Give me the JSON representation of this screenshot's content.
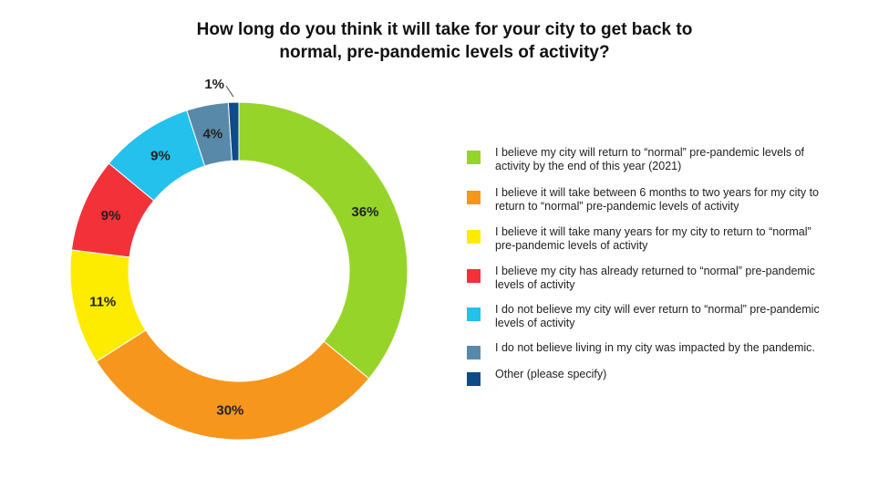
{
  "chart_data": {
    "type": "pie",
    "variant": "donut",
    "title_lines": [
      "How long do you think it will take for your city to get back to",
      "normal, pre-pandemic levels of activity?"
    ],
    "legend_placement": "right",
    "slices": [
      {
        "label": "I believe my city will return to “normal” pre-pandemic levels of activity by the end of this year (2021)",
        "value": 36,
        "data_label": "36%",
        "color": "#97D42A"
      },
      {
        "label": "I believe it will take between 6 months to two years for my city to return to “normal” pre-pandemic levels of activity",
        "value": 30,
        "data_label": "30%",
        "color": "#F7961D"
      },
      {
        "label": "I believe it will take many years for my city to return to “normal” pre-pandemic levels of activity",
        "value": 11,
        "data_label": "11%",
        "color": "#FDEC00"
      },
      {
        "label": "I believe my city has already returned to “normal” pre-pandemic levels of activity",
        "value": 9,
        "data_label": "9%",
        "color": "#F23139"
      },
      {
        "label": "I do not believe my city will ever return to “normal” pre-pandemic levels of activity",
        "value": 9,
        "data_label": "9%",
        "color": "#23C1EC"
      },
      {
        "label": "I do not believe living in my city was impacted by the pandemic.",
        "value": 4,
        "data_label": "4%",
        "color": "#5989A9"
      },
      {
        "label": "Other (please specify)",
        "value": 1,
        "data_label": "1%",
        "color": "#0E4B87"
      }
    ]
  }
}
